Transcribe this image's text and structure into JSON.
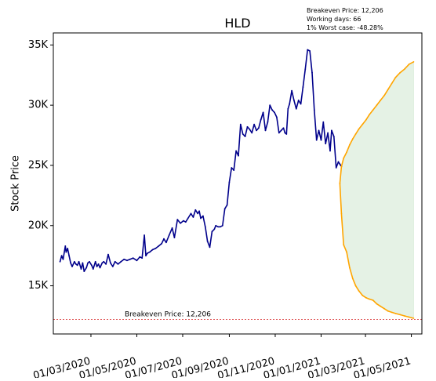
{
  "chart_data": {
    "type": "line",
    "title": "HLD",
    "ylabel": "Stock Price",
    "xlabel": "",
    "ylim": [
      11000,
      36000
    ],
    "xlim": [
      "2020-01-11",
      "2021-05-15"
    ],
    "y_ticks": [
      {
        "value": 15000,
        "label": "15K"
      },
      {
        "value": 20000,
        "label": "20K"
      },
      {
        "value": 25000,
        "label": "25K"
      },
      {
        "value": 30000,
        "label": "30K"
      },
      {
        "value": 35000,
        "label": "35K"
      }
    ],
    "x_ticks": [
      {
        "value": "2020-03-01",
        "label": "01/03/2020"
      },
      {
        "value": "2020-05-01",
        "label": "01/05/2020"
      },
      {
        "value": "2020-07-01",
        "label": "01/07/2020"
      },
      {
        "value": "2020-09-01",
        "label": "01/09/2020"
      },
      {
        "value": "2020-11-01",
        "label": "01/11/2020"
      },
      {
        "value": "2021-01-01",
        "label": "01/01/2021"
      },
      {
        "value": "2021-03-01",
        "label": "01/03/2021"
      },
      {
        "value": "2021-05-01",
        "label": "01/05/2021"
      }
    ],
    "info_box": [
      "Breakeven Price: 12,206",
      "Working days: 66",
      "1% Worst case: -48.28%"
    ],
    "breakeven": {
      "value": 12206,
      "label": "Breakeven Price: 12,206",
      "color": "#d62728"
    },
    "colors": {
      "history": "#00008b",
      "projection": "#ffa500",
      "band": "#e5f2e5"
    },
    "series": [
      {
        "color": "#00008b",
        "x": [
          "2020-01-20",
          "2020-01-22",
          "2020-01-24",
          "2020-01-27",
          "2020-01-28",
          "2020-01-30",
          "2020-02-01",
          "2020-02-03",
          "2020-02-05",
          "2020-02-08",
          "2020-02-10",
          "2020-02-12",
          "2020-02-14",
          "2020-02-17",
          "2020-02-19",
          "2020-02-21",
          "2020-02-24",
          "2020-02-26",
          "2020-02-28",
          "2020-03-02",
          "2020-03-04",
          "2020-03-07",
          "2020-03-09",
          "2020-03-11",
          "2020-03-13",
          "2020-03-16",
          "2020-03-18",
          "2020-03-21",
          "2020-03-24",
          "2020-03-27",
          "2020-03-30",
          "2020-04-02",
          "2020-04-06",
          "2020-04-10",
          "2020-04-14",
          "2020-04-18",
          "2020-04-22",
          "2020-04-26",
          "2020-05-01",
          "2020-05-05",
          "2020-05-08",
          "2020-05-11",
          "2020-05-13",
          "2020-05-15",
          "2020-05-18",
          "2020-05-22",
          "2020-05-26",
          "2020-05-30",
          "2020-06-03",
          "2020-06-06",
          "2020-06-09",
          "2020-06-13",
          "2020-06-17",
          "2020-06-20",
          "2020-06-24",
          "2020-06-28",
          "2020-07-02",
          "2020-07-05",
          "2020-07-08",
          "2020-07-12",
          "2020-07-15",
          "2020-07-18",
          "2020-07-21",
          "2020-07-23",
          "2020-07-25",
          "2020-07-28",
          "2020-07-31",
          "2020-08-03",
          "2020-08-06",
          "2020-08-09",
          "2020-08-12",
          "2020-08-14",
          "2020-08-17",
          "2020-08-20",
          "2020-08-23",
          "2020-08-26",
          "2020-08-29",
          "2020-09-01",
          "2020-09-04",
          "2020-09-07",
          "2020-09-10",
          "2020-09-13",
          "2020-09-16",
          "2020-09-19",
          "2020-09-22",
          "2020-09-25",
          "2020-09-28",
          "2020-10-01",
          "2020-10-04",
          "2020-10-07",
          "2020-10-10",
          "2020-10-13",
          "2020-10-16",
          "2020-10-19",
          "2020-10-22",
          "2020-10-25",
          "2020-10-28",
          "2020-10-31",
          "2020-11-03",
          "2020-11-06",
          "2020-11-09",
          "2020-11-12",
          "2020-11-14",
          "2020-11-16",
          "2020-11-18",
          "2020-11-20",
          "2020-11-23",
          "2020-11-26",
          "2020-11-29",
          "2020-12-02",
          "2020-12-05",
          "2020-12-08",
          "2020-12-11",
          "2020-12-14",
          "2020-12-17",
          "2020-12-20",
          "2020-12-23",
          "2020-12-26",
          "2020-12-29",
          "2021-01-01",
          "2021-01-04",
          "2021-01-07",
          "2021-01-10",
          "2021-01-13",
          "2021-01-15",
          "2021-01-18",
          "2021-01-21",
          "2021-01-24",
          "2021-01-26",
          "2021-01-28"
        ],
        "y": [
          17000,
          17500,
          17200,
          18300,
          17800,
          18100,
          17500,
          16900,
          16600,
          17000,
          16800,
          16700,
          17000,
          16400,
          16900,
          16200,
          16500,
          16900,
          17000,
          16700,
          16400,
          17000,
          16600,
          16800,
          16500,
          16900,
          17000,
          16800,
          17600,
          16900,
          16600,
          17000,
          16800,
          17000,
          17200,
          17100,
          17200,
          17300,
          17100,
          17400,
          17300,
          19200,
          17500,
          17700,
          17800,
          18000,
          18100,
          18300,
          18500,
          18900,
          18600,
          19200,
          19800,
          19000,
          20500,
          20200,
          20400,
          20300,
          20600,
          21000,
          20700,
          21300,
          21000,
          21200,
          20600,
          20800,
          19900,
          18700,
          18200,
          19500,
          19700,
          20000,
          19900,
          19900,
          20000,
          21400,
          21700,
          23600,
          24800,
          24600,
          26200,
          25800,
          28400,
          27600,
          27400,
          28200,
          28000,
          27700,
          28400,
          27900,
          28100,
          28800,
          29400,
          27900,
          28600,
          30000,
          29600,
          29400,
          29000,
          27700,
          27900,
          28100,
          27700,
          27600,
          29700,
          30100,
          31200,
          30400,
          29700,
          30400,
          30100,
          31500,
          33000,
          34600,
          34500,
          32700,
          29600,
          27100,
          27900,
          27100,
          28600,
          26800,
          27700,
          26200,
          27900,
          27400,
          24800,
          25300,
          25100,
          24900
        ]
      },
      {
        "color": "#ffa500",
        "x": [
          "2021-01-26",
          "2021-01-28",
          "2021-01-31",
          "2021-02-04",
          "2021-02-08",
          "2021-02-12",
          "2021-02-16",
          "2021-02-20",
          "2021-02-25",
          "2021-03-02",
          "2021-03-06",
          "2021-03-11",
          "2021-03-16",
          "2021-03-21",
          "2021-03-26",
          "2021-03-31",
          "2021-04-05",
          "2021-04-10",
          "2021-04-16",
          "2021-04-22",
          "2021-04-28",
          "2021-05-04"
        ],
        "y": [
          23500,
          24900,
          25600,
          26100,
          26700,
          27200,
          27600,
          28000,
          28400,
          28800,
          29200,
          29600,
          30000,
          30400,
          30800,
          31300,
          31800,
          32300,
          32700,
          33000,
          33400,
          33600
        ]
      },
      {
        "color": "#ffa500",
        "x": [
          "2021-01-26",
          "2021-01-28",
          "2021-01-31",
          "2021-02-04",
          "2021-02-08",
          "2021-02-12",
          "2021-02-16",
          "2021-02-20",
          "2021-02-25",
          "2021-03-02",
          "2021-03-06",
          "2021-03-11",
          "2021-03-16",
          "2021-03-21",
          "2021-03-26",
          "2021-03-31",
          "2021-04-05",
          "2021-04-10",
          "2021-04-16",
          "2021-04-22",
          "2021-04-28",
          "2021-05-04"
        ],
        "y": [
          23500,
          21000,
          18400,
          17800,
          16500,
          15600,
          15000,
          14600,
          14200,
          14000,
          13900,
          13800,
          13500,
          13300,
          13100,
          12900,
          12800,
          12700,
          12600,
          12500,
          12400,
          12300
        ]
      }
    ]
  }
}
